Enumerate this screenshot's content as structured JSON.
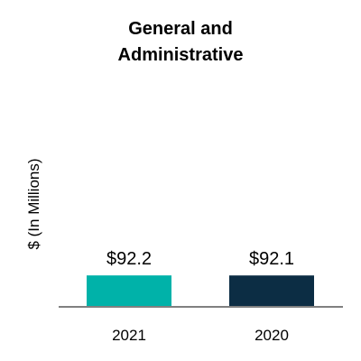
{
  "chart_data": {
    "type": "bar",
    "title_lines": [
      "General and",
      "Administrative"
    ],
    "ylabel": "$ (In Millions)",
    "xlabel": "",
    "categories": [
      "2021",
      "2020"
    ],
    "values": [
      92.2,
      92.1
    ],
    "data_labels": [
      "$92.2",
      "$92.1"
    ],
    "bar_colors": [
      "#00b2a9",
      "#0c2d44"
    ],
    "ylim": [
      0,
      900
    ],
    "grid": false,
    "legend": "none"
  },
  "colors": {
    "axis": "#808080",
    "text": "#000000",
    "background": "#ffffff"
  }
}
